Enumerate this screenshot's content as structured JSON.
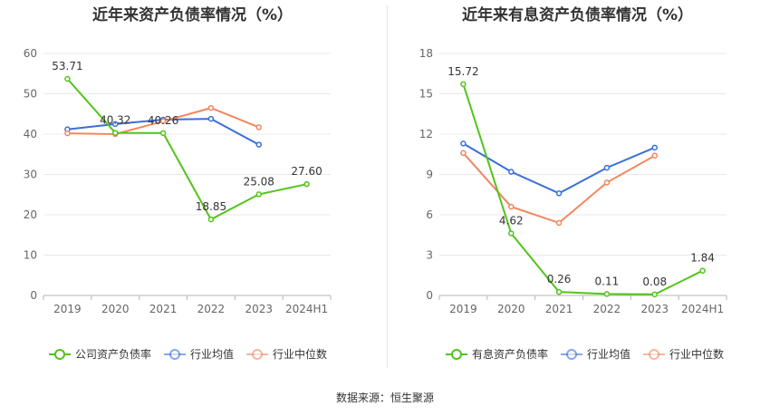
{
  "chart_data": [
    {
      "type": "line",
      "title": "近年来资产负债率情况（%）",
      "categories": [
        "2019",
        "2020",
        "2021",
        "2022",
        "2023",
        "2024H1"
      ],
      "ylim": [
        0,
        60
      ],
      "yticks": [
        0,
        10,
        20,
        30,
        40,
        50,
        60
      ],
      "series": [
        {
          "name": "公司资产负债率",
          "color": "#52c41a",
          "values": [
            53.71,
            40.32,
            40.26,
            18.85,
            25.08,
            27.6
          ],
          "labels": [
            "53.71",
            "40.32",
            "40.26",
            "18.85",
            "25.08",
            "27.60"
          ]
        },
        {
          "name": "行业均值",
          "color": "#3a6fd8",
          "values": [
            41.2,
            42.5,
            43.6,
            43.8,
            37.4,
            null
          ]
        },
        {
          "name": "行业中位数",
          "color": "#f0885f",
          "values": [
            40.2,
            40.0,
            43.2,
            46.5,
            41.7,
            null
          ]
        }
      ]
    },
    {
      "type": "line",
      "title": "近年来有息资产负债率情况（%）",
      "categories": [
        "2019",
        "2020",
        "2021",
        "2022",
        "2023",
        "2024H1"
      ],
      "ylim": [
        0,
        18
      ],
      "yticks": [
        0,
        3,
        6,
        9,
        12,
        15,
        18
      ],
      "series": [
        {
          "name": "有息资产负债率",
          "color": "#52c41a",
          "values": [
            15.72,
            4.62,
            0.26,
            0.11,
            0.08,
            1.84
          ],
          "labels": [
            "15.72",
            "4.62",
            "0.26",
            "0.11",
            "0.08",
            "1.84"
          ]
        },
        {
          "name": "行业均值",
          "color": "#3a6fd8",
          "values": [
            11.3,
            9.2,
            7.6,
            9.5,
            11.0,
            null
          ]
        },
        {
          "name": "行业中位数",
          "color": "#f0885f",
          "values": [
            10.6,
            6.6,
            5.4,
            8.4,
            10.4,
            null
          ]
        }
      ]
    }
  ],
  "footer": {
    "source": "数据来源：恒生聚源"
  }
}
